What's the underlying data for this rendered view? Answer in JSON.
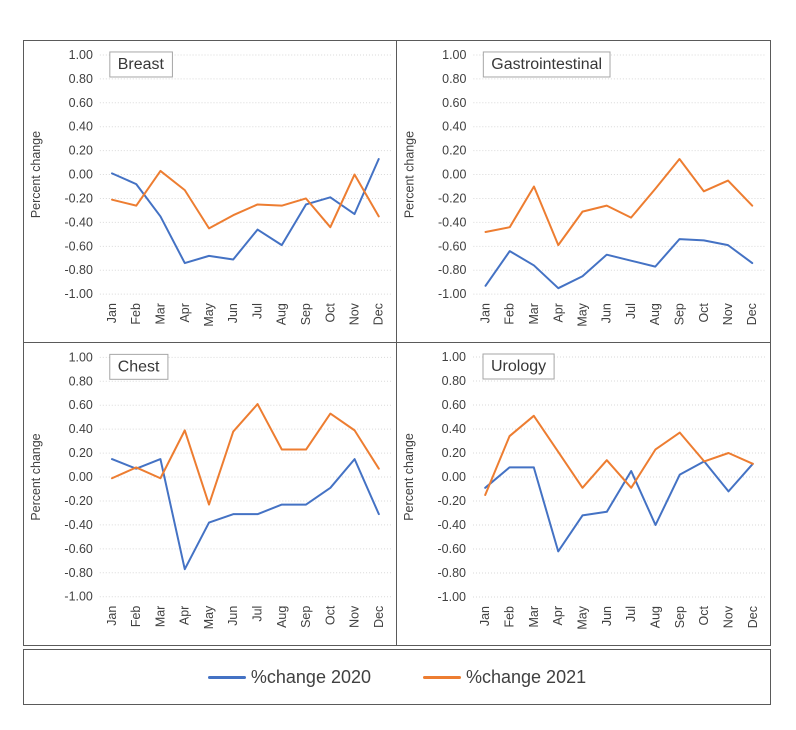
{
  "figure": {
    "description": "2x2 grid of monthly percent-change line charts by specialty",
    "border_color": "#5a5a5a",
    "gridline_color": "#d9d9d9",
    "text_color": "#404040"
  },
  "legend": {
    "items": [
      {
        "label": "%change 2020",
        "color": "#4472C4"
      },
      {
        "label": "%change 2021",
        "color": "#ED7D31"
      }
    ],
    "position": "bottom-shared-box"
  },
  "chart_data": [
    {
      "type": "line",
      "title": "Breast",
      "ylabel": "Percent change",
      "ylim": [
        -1.0,
        1.0
      ],
      "yticks": [
        1.0,
        0.8,
        0.6,
        0.4,
        0.2,
        0.0,
        -0.2,
        -0.4,
        -0.6,
        -0.8,
        -1.0
      ],
      "grid": true,
      "x_tick_rotation": -90,
      "x": [
        "Jan",
        "Feb",
        "Mar",
        "Apr",
        "May",
        "Jun",
        "Jul",
        "Aug",
        "Sep",
        "Oct",
        "Nov",
        "Dec"
      ],
      "series": [
        {
          "name": "%change 2020",
          "color": "#4472C4",
          "values": [
            0.01,
            -0.08,
            -0.35,
            -0.74,
            -0.68,
            -0.71,
            -0.46,
            -0.59,
            -0.25,
            -0.19,
            -0.33,
            0.13
          ]
        },
        {
          "name": "%change 2021",
          "color": "#ED7D31",
          "values": [
            -0.21,
            -0.26,
            0.03,
            -0.13,
            -0.45,
            -0.34,
            -0.25,
            -0.26,
            -0.2,
            -0.44,
            0.0,
            -0.35
          ]
        }
      ]
    },
    {
      "type": "line",
      "title": "Gastrointestinal",
      "ylabel": "Percent change",
      "ylim": [
        -1.0,
        1.0
      ],
      "yticks": [
        1.0,
        0.8,
        0.6,
        0.4,
        0.2,
        0.0,
        -0.2,
        -0.4,
        -0.6,
        -0.8,
        -1.0
      ],
      "grid": true,
      "x_tick_rotation": -90,
      "x": [
        "Jan",
        "Feb",
        "Mar",
        "Apr",
        "May",
        "Jun",
        "Jul",
        "Aug",
        "Sep",
        "Oct",
        "Nov",
        "Dec"
      ],
      "series": [
        {
          "name": "%change 2020",
          "color": "#4472C4",
          "values": [
            -0.93,
            -0.64,
            -0.76,
            -0.95,
            -0.85,
            -0.67,
            -0.72,
            -0.77,
            -0.54,
            -0.55,
            -0.59,
            -0.74
          ]
        },
        {
          "name": "%change 2021",
          "color": "#ED7D31",
          "values": [
            -0.48,
            -0.44,
            -0.1,
            -0.59,
            -0.31,
            -0.26,
            -0.36,
            -0.12,
            0.13,
            -0.14,
            -0.05,
            -0.26
          ]
        }
      ]
    },
    {
      "type": "line",
      "title": "Chest",
      "ylabel": "Percent change",
      "ylim": [
        -1.0,
        1.0
      ],
      "yticks": [
        1.0,
        0.8,
        0.6,
        0.4,
        0.2,
        0.0,
        -0.2,
        -0.4,
        -0.6,
        -0.8,
        -1.0
      ],
      "grid": true,
      "x_tick_rotation": -90,
      "x": [
        "Jan",
        "Feb",
        "Mar",
        "Apr",
        "May",
        "Jun",
        "Jul",
        "Aug",
        "Sep",
        "Oct",
        "Nov",
        "Dec"
      ],
      "series": [
        {
          "name": "%change 2020",
          "color": "#4472C4",
          "values": [
            0.15,
            0.07,
            0.15,
            -0.77,
            -0.38,
            -0.31,
            -0.31,
            -0.23,
            -0.23,
            -0.09,
            0.15,
            -0.31
          ]
        },
        {
          "name": "%change 2021",
          "color": "#ED7D31",
          "values": [
            -0.01,
            0.08,
            -0.01,
            0.39,
            -0.23,
            0.38,
            0.61,
            0.23,
            0.23,
            0.53,
            0.39,
            0.07
          ]
        }
      ]
    },
    {
      "type": "line",
      "title": "Urology",
      "ylabel": "Percent change",
      "ylim": [
        -1.0,
        1.0
      ],
      "yticks": [
        1.0,
        0.8,
        0.6,
        0.4,
        0.2,
        0.0,
        -0.2,
        -0.4,
        -0.6,
        -0.8,
        -1.0
      ],
      "grid": true,
      "x_tick_rotation": -90,
      "x": [
        "Jan",
        "Feb",
        "Mar",
        "Apr",
        "May",
        "Jun",
        "Jul",
        "Aug",
        "Sep",
        "Oct",
        "Nov",
        "Dec"
      ],
      "series": [
        {
          "name": "%change 2020",
          "color": "#4472C4",
          "values": [
            -0.09,
            0.08,
            0.08,
            -0.62,
            -0.32,
            -0.29,
            0.05,
            -0.4,
            0.02,
            0.13,
            -0.12,
            0.11
          ]
        },
        {
          "name": "%change 2021",
          "color": "#ED7D31",
          "values": [
            -0.15,
            0.34,
            0.51,
            0.21,
            -0.09,
            0.14,
            -0.09,
            0.23,
            0.37,
            0.13,
            0.2,
            0.11
          ]
        }
      ]
    }
  ]
}
